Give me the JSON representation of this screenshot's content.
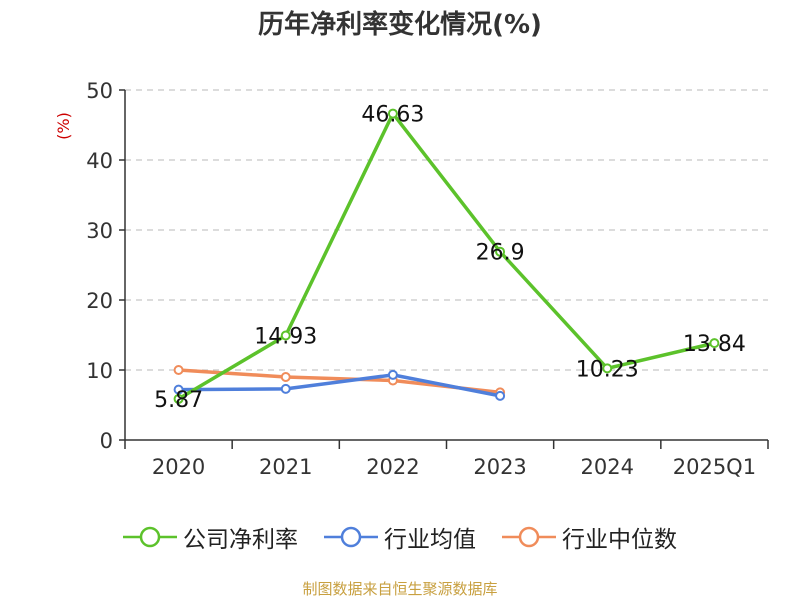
{
  "title": "历年净利率变化情况(%)",
  "source": "制图数据来自恒生聚源数据库",
  "colors": {
    "green": "#5cc22b",
    "blue": "#4f7fdb",
    "orange": "#f08c5a",
    "grid": "#c8c8c8",
    "axis": "#333333",
    "unit": "#cc0000"
  },
  "chart_data": {
    "type": "line",
    "title": "历年净利率变化情况(%)",
    "ylabel": "(%)",
    "xlabel": "",
    "categories": [
      "2020",
      "2021",
      "2022",
      "2023",
      "2024",
      "2025Q1"
    ],
    "ylim": [
      0,
      50
    ],
    "yticks": [
      0,
      10,
      20,
      30,
      40,
      50
    ],
    "grid": true,
    "legend_position": "bottom",
    "series": [
      {
        "name": "公司净利率",
        "color": "#5cc22b",
        "values": [
          5.87,
          14.93,
          46.63,
          26.9,
          10.23,
          13.84
        ],
        "labels": [
          "5.87",
          "14.93",
          "46.63",
          "26.9",
          "10.23",
          "13.84"
        ]
      },
      {
        "name": "行业均值",
        "color": "#4f7fdb",
        "values": [
          7.2,
          7.3,
          9.3,
          6.3,
          null,
          null
        ],
        "labels": []
      },
      {
        "name": "行业中位数",
        "color": "#f08c5a",
        "values": [
          10.0,
          9.0,
          8.5,
          6.8,
          null,
          null
        ],
        "labels": []
      }
    ]
  }
}
